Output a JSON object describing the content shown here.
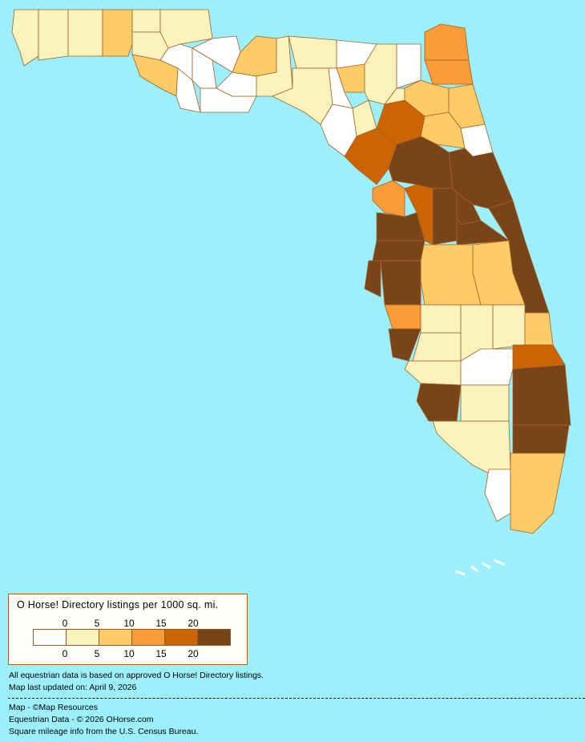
{
  "colors": {
    "ocean": "#9cf0fb",
    "bins": [
      "#ffffff",
      "#fcf2bc",
      "#fdcc66",
      "#fb9c38",
      "#cc6404",
      "#7a4419"
    ],
    "border": "#a0622a"
  },
  "legend": {
    "title": "O Horse! Directory listings per 1000 sq. mi.",
    "ticks_top": [
      "0",
      "5",
      "10",
      "15",
      "20"
    ],
    "ticks_bottom": [
      "0",
      "5",
      "10",
      "15",
      "20"
    ]
  },
  "notes": {
    "data_basis": "All equestrian data is based on approved O Horse! Directory listings.",
    "updated": "Map last updated on: April 9, 2026",
    "credit_map": "Map - ©Map Resources",
    "credit_data": "Equestrian Data - © 2026 OHorse.com",
    "credit_census": "Square mileage info from the U.S. Census Bureau."
  },
  "county_bins": [
    1,
    1,
    1,
    2,
    1,
    1,
    2,
    1,
    0,
    0,
    0,
    0,
    0,
    0,
    2,
    1,
    1,
    1,
    0,
    2,
    0,
    0,
    1,
    1,
    0,
    1,
    3,
    3,
    2,
    2,
    2,
    0,
    4,
    4,
    5,
    5,
    5,
    5,
    5,
    5,
    2,
    2,
    3,
    4,
    5,
    5,
    5,
    5,
    3,
    5,
    1,
    1,
    1,
    1,
    2,
    4,
    1,
    0,
    5,
    1,
    5,
    5,
    1,
    0,
    2
  ]
}
